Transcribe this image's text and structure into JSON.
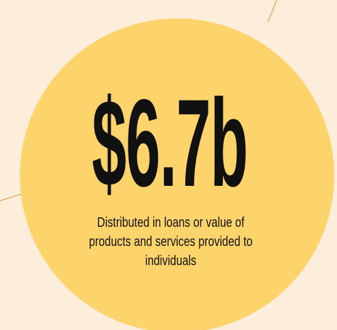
{
  "stat": "$6.7b",
  "description": [
    "Distributed in loans or value of",
    "products and services provided to",
    "individuals"
  ]
}
